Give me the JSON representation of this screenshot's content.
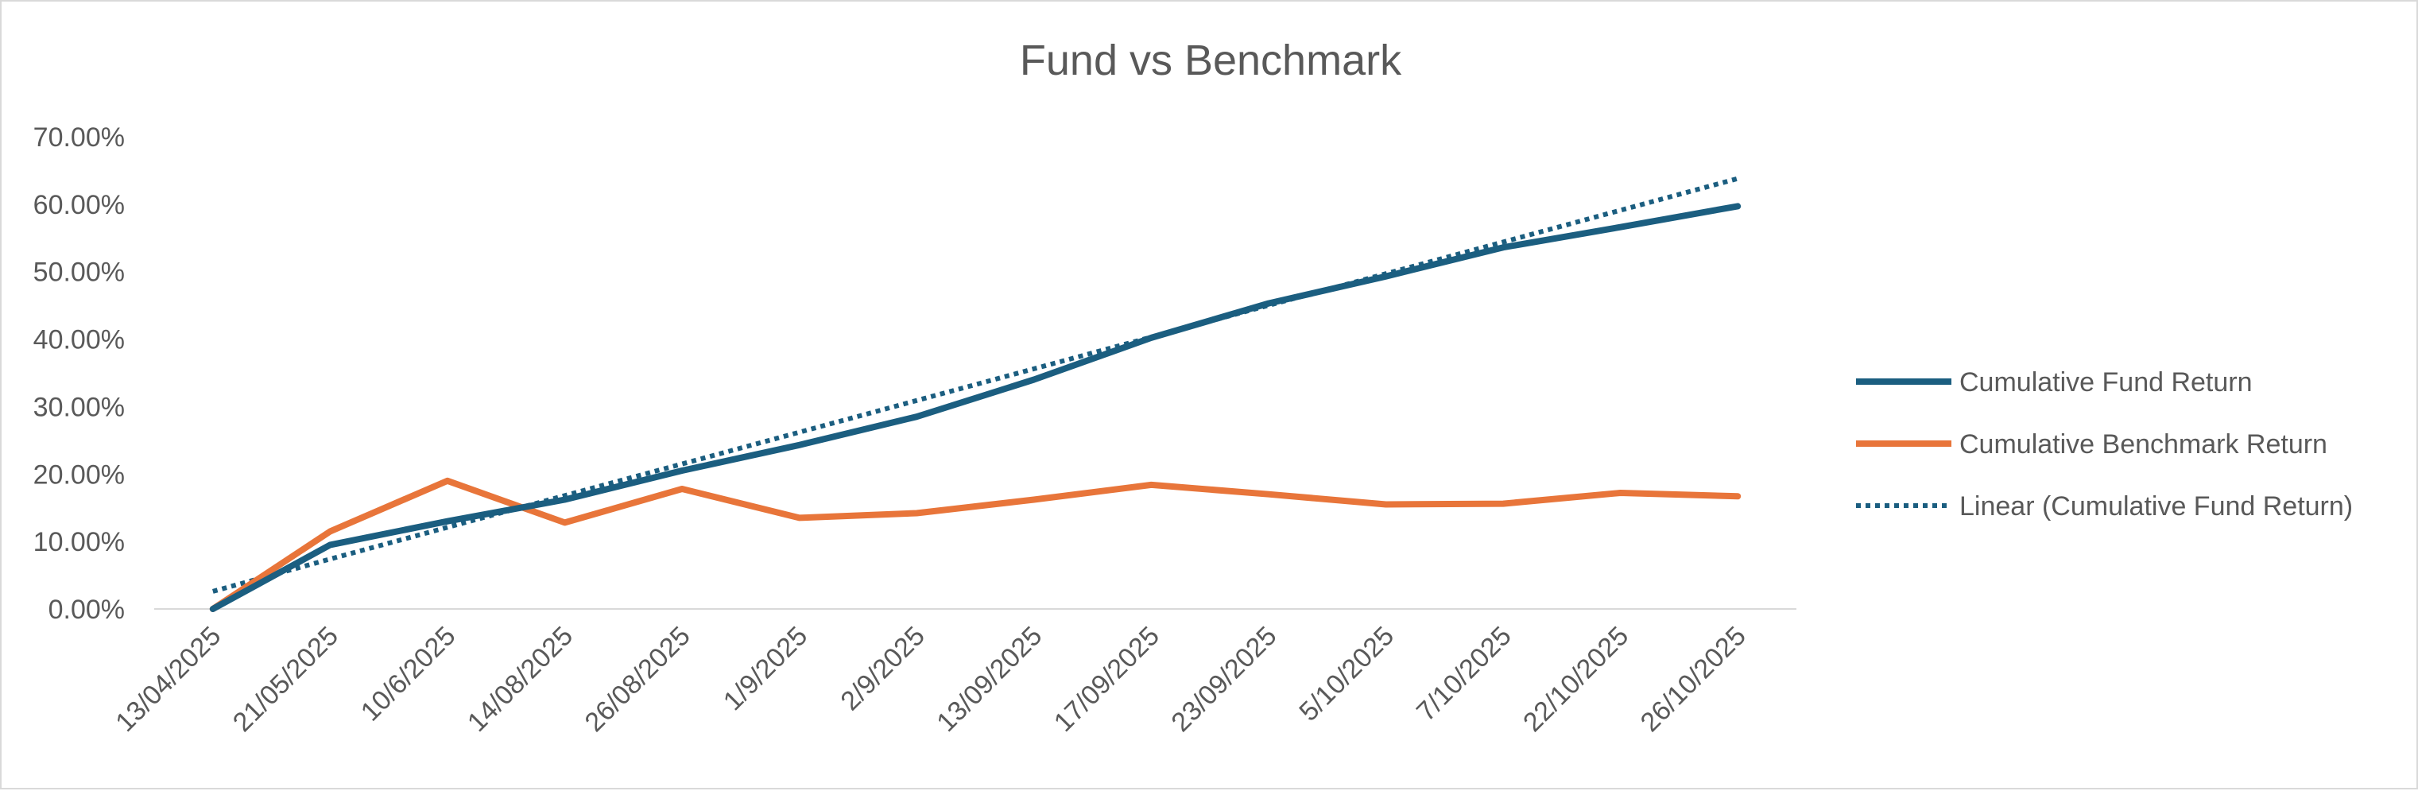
{
  "chart_data": {
    "type": "line",
    "title": "Fund vs Benchmark",
    "xlabel": "",
    "ylabel": "",
    "categories": [
      "13/04/2025",
      "21/05/2025",
      "10/6/2025",
      "14/08/2025",
      "26/08/2025",
      "1/9/2025",
      "2/9/2025",
      "13/09/2025",
      "17/09/2025",
      "23/09/2025",
      "5/10/2025",
      "7/10/2025",
      "22/10/2025",
      "26/10/2025"
    ],
    "y_ticks": [
      "0.00%",
      "10.00%",
      "20.00%",
      "30.00%",
      "40.00%",
      "50.00%",
      "60.00%",
      "70.00%"
    ],
    "ylim": [
      0,
      70
    ],
    "y_unit": "%",
    "grid": false,
    "legend_position": "right",
    "series": [
      {
        "name": "Cumulative Fund Return",
        "color": "#1b5e80",
        "style": "solid",
        "values": [
          0.0,
          9.5,
          13.0,
          16.2,
          20.5,
          24.3,
          28.5,
          34.0,
          40.2,
          45.3,
          49.3,
          53.6,
          56.6,
          59.7
        ]
      },
      {
        "name": "Cumulative Benchmark Return",
        "color": "#e8753a",
        "style": "solid",
        "values": [
          0.0,
          11.5,
          19.0,
          12.8,
          17.8,
          13.5,
          14.2,
          16.2,
          18.4,
          17.0,
          15.5,
          15.6,
          17.2,
          16.7
        ]
      },
      {
        "name": "Linear (Cumulative Fund Return)",
        "color": "#1b5e80",
        "style": "dotted",
        "values": [
          2.6,
          7.4,
          12.1,
          16.8,
          21.5,
          26.2,
          30.9,
          35.6,
          40.3,
          45.0,
          49.7,
          54.4,
          59.1,
          63.8
        ]
      }
    ]
  }
}
